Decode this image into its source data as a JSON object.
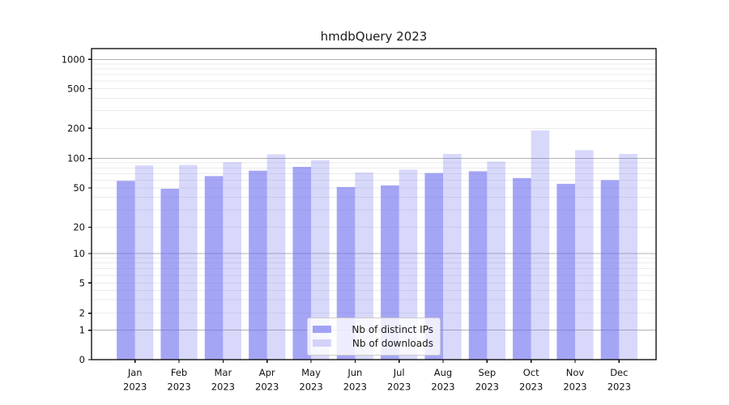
{
  "chart_data": {
    "type": "bar",
    "title": "hmdbQuery 2023",
    "categories": [
      "Jan",
      "Feb",
      "Mar",
      "Apr",
      "May",
      "Jun",
      "Jul",
      "Aug",
      "Sep",
      "Oct",
      "Nov",
      "Dec"
    ],
    "xtick_year": "2023",
    "series": [
      {
        "name": "Nb of distinct IPs",
        "color": "rgba(110,110,240,0.62)",
        "values": [
          59,
          49,
          66,
          75,
          82,
          51,
          53,
          71,
          74,
          63,
          55,
          60
        ]
      },
      {
        "name": "Nb of downloads",
        "color": "rgba(110,110,240,0.27)",
        "values": [
          85,
          86,
          92,
          110,
          96,
          72,
          77,
          111,
          93,
          190,
          121,
          111
        ]
      }
    ],
    "xlabel": "",
    "ylabel": "",
    "yscale": "symlog",
    "yticks": [
      0,
      1,
      2,
      5,
      10,
      20,
      50,
      100,
      200,
      500,
      1000
    ],
    "ylim": [
      0,
      1280
    ],
    "grid": "both",
    "legend_position": "lower center",
    "colors": {
      "major_grid": "#b2b2b2",
      "minor_grid": "#ebebeb",
      "axis": "#000000",
      "bar_base": "#6e6ef0"
    }
  }
}
